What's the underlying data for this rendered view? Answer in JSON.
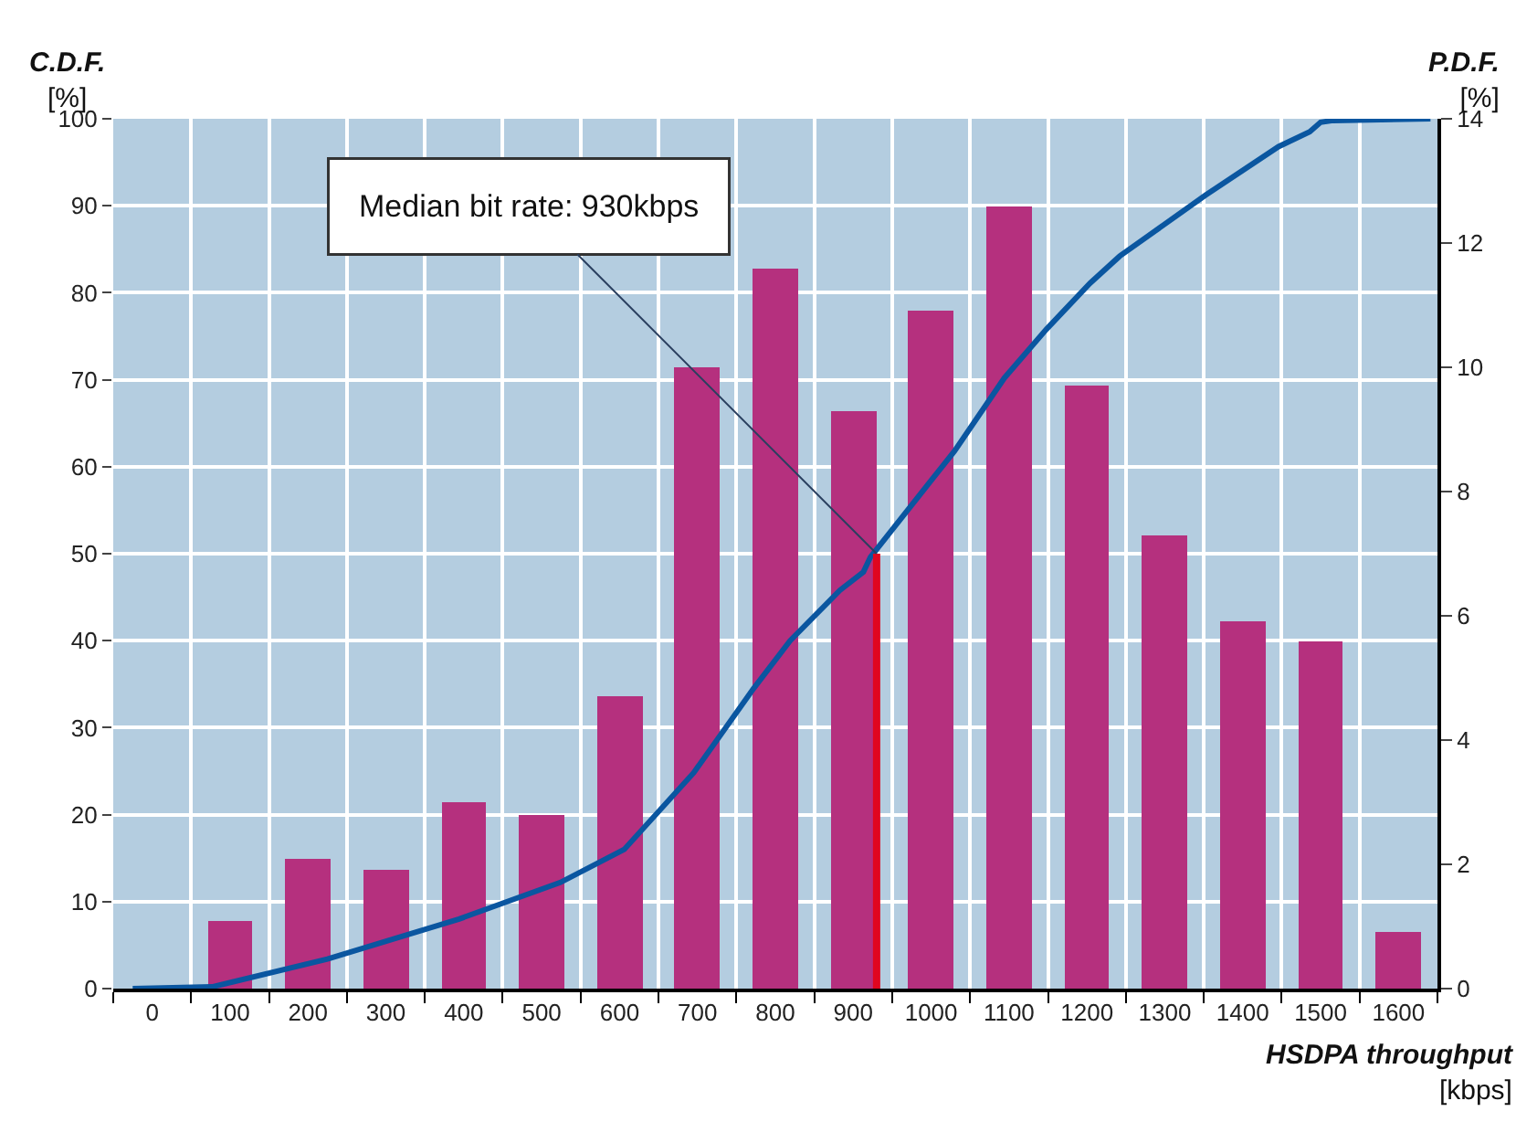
{
  "chart_data": {
    "type": "bar",
    "ylabel": "C.D.F.\n[%]",
    "y2label": "P.D.F.\n[%]",
    "xlabel": "HSDPA throughput\n[kbps]",
    "x": [
      100,
      200,
      300,
      400,
      500,
      600,
      700,
      800,
      900,
      1000,
      1100,
      1200,
      1300,
      1400,
      1500,
      1600
    ],
    "series": [
      {
        "axis": "y2",
        "color": "#b5307e",
        "values": [
          1.1,
          2.1,
          1.9,
          3.0,
          2.8,
          4.7,
          10.0,
          11.6,
          9.3,
          10.9,
          12.6,
          9.7,
          7.3,
          5.9,
          5.6,
          0.9
        ]
      },
      {
        "type": "line",
        "axis": "y",
        "color": "#0a56a0",
        "x": [
          -25,
          77,
          225,
          394,
          524,
          606,
          695,
          772,
          819,
          883,
          913,
          922,
          1030,
          1094,
          1148,
          1204,
          1242,
          1352,
          1446,
          1486,
          1500,
          1516,
          1641
        ],
        "values": [
          0,
          0.2,
          3.4,
          8,
          12.2,
          16,
          24.8,
          34.5,
          40,
          45.8,
          47.9,
          49.6,
          61.8,
          70.2,
          75.8,
          81.1,
          84.2,
          91.2,
          96.8,
          98.5,
          99.6,
          99.8,
          100
        ]
      },
      {
        "type": "line",
        "axis": "y",
        "color": "#e0061f",
        "x": [
          930,
          930
        ],
        "values": [
          0,
          50
        ]
      }
    ],
    "annotations": [
      {
        "text": "Median bit rate: 930kbps",
        "x": 930,
        "y": 50
      }
    ],
    "xlim": [
      -50,
      1650
    ],
    "xticks": [
      0,
      100,
      200,
      300,
      400,
      500,
      600,
      700,
      800,
      900,
      1000,
      1100,
      1200,
      1300,
      1400,
      1500,
      1600
    ],
    "ylim": [
      0,
      100
    ],
    "yticks": [
      0,
      10,
      20,
      30,
      40,
      50,
      60,
      70,
      80,
      90,
      100
    ],
    "y2lim": [
      0,
      14
    ],
    "y2ticks": [
      0,
      2,
      4,
      6,
      8,
      10,
      12,
      14
    ],
    "grid": true
  }
}
